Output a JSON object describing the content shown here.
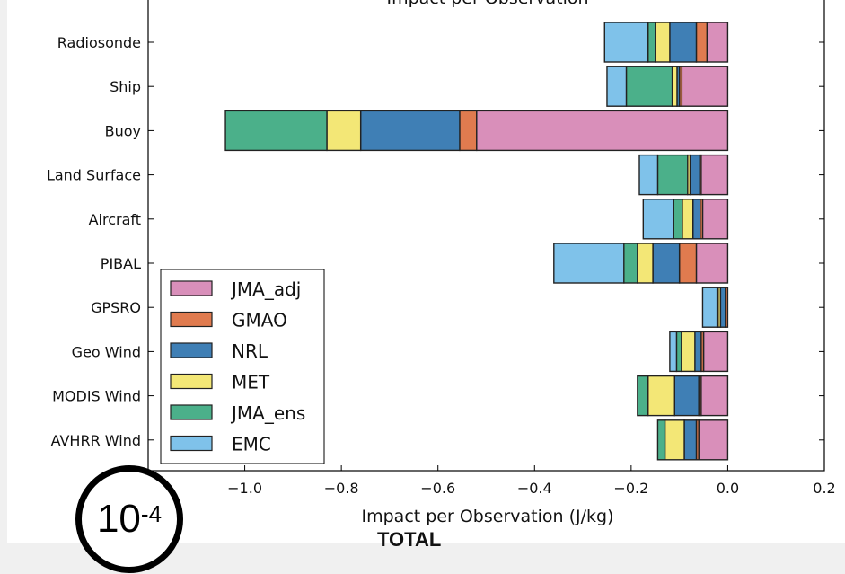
{
  "chart_data": {
    "type": "bar",
    "orientation": "horizontal",
    "stacked": true,
    "title": "Impact per Observation",
    "xlabel": "Impact per Observation (J/kg)",
    "xlim": [
      -1.2,
      0.2
    ],
    "xticks": [
      "−1.0",
      "−0.8",
      "−0.6",
      "−0.4",
      "−0.2",
      "0.0",
      "0.2"
    ],
    "xtick_values": [
      -1.0,
      -0.8,
      -0.6,
      -0.4,
      -0.2,
      0.0,
      0.2
    ],
    "legend_position": "lower-left",
    "categories": [
      "Radiosonde",
      "Ship",
      "Buoy",
      "Land Surface",
      "Aircraft",
      "PIBAL",
      "GPSRO",
      "Geo Wind",
      "MODIS Wind",
      "AVHRR Wind"
    ],
    "series": [
      {
        "name": "JMA_adj",
        "color": "#d98fba",
        "values": [
          -0.043,
          -0.095,
          -0.52,
          -0.055,
          -0.052,
          -0.065,
          0,
          -0.05,
          -0.055,
          -0.06
        ]
      },
      {
        "name": "GMAO",
        "color": "#e07b4f",
        "values": [
          -0.022,
          -0.005,
          -0.035,
          -0.003,
          -0.005,
          -0.035,
          -0.005,
          -0.005,
          -0.005,
          -0.005
        ]
      },
      {
        "name": "NRL",
        "color": "#3f7fb5",
        "values": [
          -0.055,
          -0.005,
          -0.205,
          -0.02,
          -0.015,
          -0.055,
          -0.01,
          -0.013,
          -0.05,
          -0.025
        ]
      },
      {
        "name": "MET",
        "color": "#f3e776",
        "values": [
          -0.03,
          -0.01,
          -0.07,
          -0.005,
          -0.022,
          -0.032,
          -0.005,
          -0.028,
          -0.055,
          -0.04
        ]
      },
      {
        "name": "JMA_ens",
        "color": "#4bb08a",
        "values": [
          -0.015,
          -0.095,
          -0.21,
          -0.062,
          -0.018,
          -0.028,
          -0.002,
          -0.01,
          -0.022,
          -0.015
        ]
      },
      {
        "name": "EMC",
        "color": "#7fc2ea",
        "values": [
          -0.09,
          -0.04,
          0,
          -0.038,
          -0.063,
          -0.145,
          -0.03,
          -0.014,
          0,
          0
        ]
      }
    ]
  },
  "footer": {
    "total_label": "TOTAL",
    "scale_base": "10",
    "scale_exp": "-4"
  }
}
